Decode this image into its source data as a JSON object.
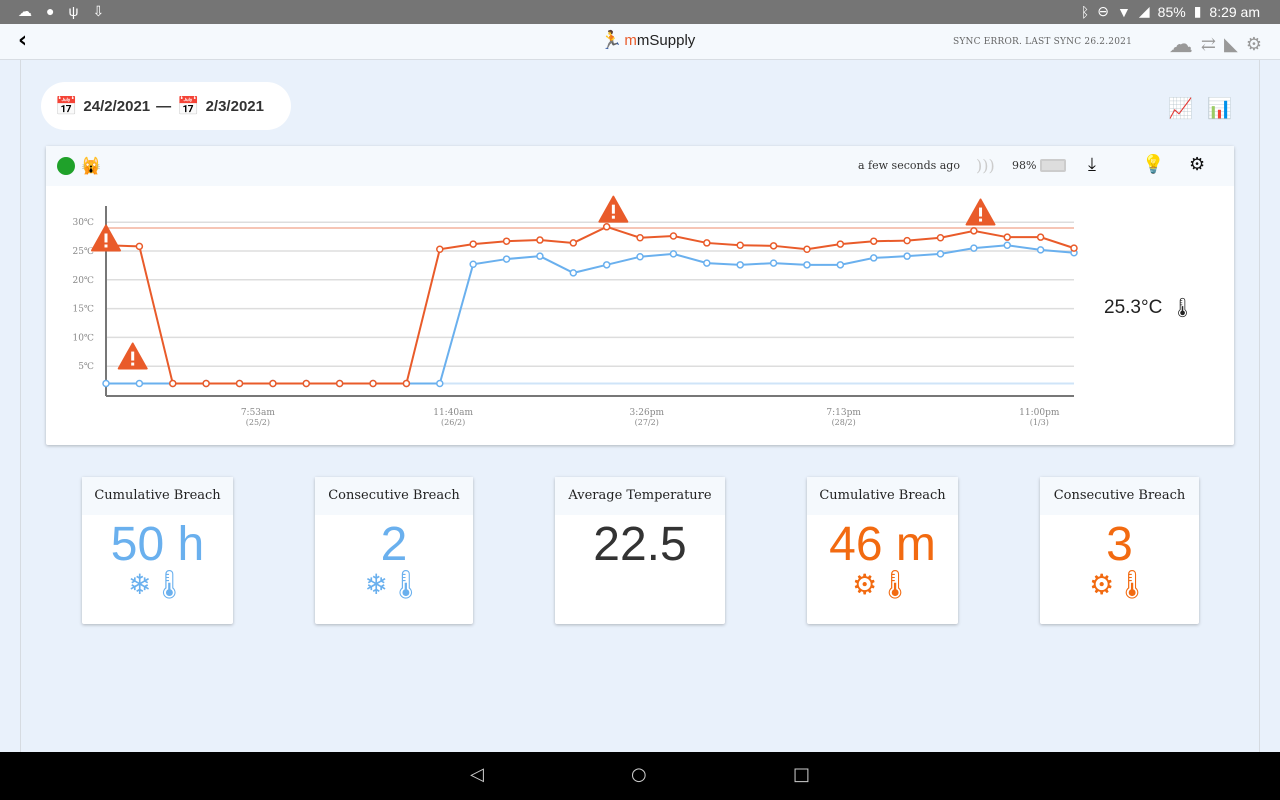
{
  "status_bar": {
    "battery": "85%",
    "time": "8:29 am"
  },
  "app_bar": {
    "logo_text": "mSupply",
    "sync_status": "SYNC ERROR. LAST SYNC 26.2.2021"
  },
  "date_range": {
    "from": "24/2/2021",
    "separator": "—",
    "to": "2/3/2021"
  },
  "sensor": {
    "last_update": "a few seconds ago",
    "battery": "98%",
    "current_temp": "25.3°C",
    "status_color": "#1fa12a"
  },
  "colors": {
    "max": "#e95b2a",
    "min": "#6ab0ee",
    "hot": "#f26a10",
    "cold": "#6ab0ee"
  },
  "stats": [
    {
      "title": "Cumulative Breach",
      "value": "50 h",
      "type": "cold"
    },
    {
      "title": "Consecutive Breach",
      "value": "2",
      "type": "cold"
    },
    {
      "title": "Average Temperature",
      "value": "22.5",
      "type": "neutral"
    },
    {
      "title": "Cumulative Breach",
      "value": "46 m",
      "type": "hot"
    },
    {
      "title": "Consecutive Breach",
      "value": "3",
      "type": "hot"
    }
  ],
  "chart_data": {
    "type": "line",
    "ylim": [
      0,
      32
    ],
    "y_ticks": [
      {
        "v": 30,
        "label": "30℃"
      },
      {
        "v": 25,
        "label": "25℃"
      },
      {
        "v": 20,
        "label": "20℃"
      },
      {
        "v": 15,
        "label": "15℃"
      },
      {
        "v": 10,
        "label": "10℃"
      },
      {
        "v": 5,
        "label": "5℃"
      }
    ],
    "x_ticks": [
      {
        "i": 4.55,
        "time": "7:53am",
        "date": "(25/2)"
      },
      {
        "i": 10.4,
        "time": "11:40am",
        "date": "(26/2)"
      },
      {
        "i": 16.2,
        "time": "3:26pm",
        "date": "(27/2)"
      },
      {
        "i": 22.1,
        "time": "7:13pm",
        "date": "(28/2)"
      },
      {
        "i": 27.96,
        "time": "11:00pm",
        "date": "(1/3)"
      }
    ],
    "max_threshold": 29,
    "min_threshold": 2,
    "series": [
      {
        "name": "max",
        "values": [
          26,
          25.8,
          2,
          2,
          2,
          2,
          2,
          2,
          2,
          2,
          25.3,
          26.2,
          26.7,
          26.9,
          26.4,
          29.2,
          27.3,
          27.6,
          26.4,
          26,
          25.9,
          25.3,
          26.2,
          26.7,
          26.8,
          27.3,
          28.5,
          27.4,
          27.4,
          25.5
        ]
      },
      {
        "name": "min",
        "values": [
          2,
          2,
          2,
          2,
          2,
          2,
          2,
          2,
          2,
          2,
          2,
          22.7,
          23.6,
          24.1,
          21.2,
          22.6,
          24,
          24.5,
          22.9,
          22.6,
          22.9,
          22.6,
          22.6,
          23.8,
          24.1,
          24.5,
          25.5,
          26,
          25.2,
          24.7
        ]
      }
    ],
    "breach_markers": [
      {
        "i": 0,
        "v": 27
      },
      {
        "i": 0.8,
        "v": 6.5
      },
      {
        "i": 15.2,
        "v": 32
      },
      {
        "i": 26.2,
        "v": 31.5
      }
    ]
  }
}
